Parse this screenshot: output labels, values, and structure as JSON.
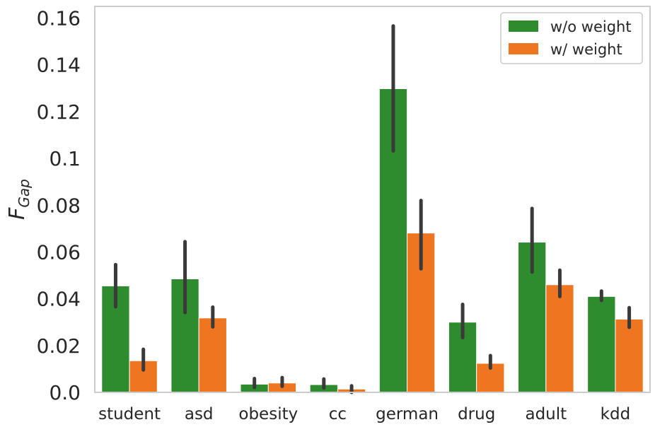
{
  "chart_data": {
    "type": "bar",
    "title": "",
    "xlabel": "",
    "ylabel": "F",
    "ylabel_subscript": "Gap",
    "ylim": [
      0,
      0.165
    ],
    "yticks": [
      0,
      0.02,
      0.04,
      0.06,
      0.08,
      0.1,
      0.12,
      0.14,
      0.16
    ],
    "ytick_labels": [
      "0.0",
      "0.02",
      "0.04",
      "0.06",
      "0.08",
      "0.1",
      "0.12",
      "0.14",
      "0.16"
    ],
    "categories": [
      "student",
      "asd",
      "obesity",
      "cc",
      "german",
      "drug",
      "adult",
      "kdd"
    ],
    "legend_position": "top-right",
    "grid": false,
    "series": [
      {
        "name": "w/o weight",
        "color": "#2e8b2e",
        "values": [
          0.0455,
          0.0485,
          0.0035,
          0.0033,
          0.1298,
          0.03,
          0.0642,
          0.041
        ],
        "err_low": [
          0.0366,
          0.0341,
          0.0021,
          0.0019,
          0.1032,
          0.0234,
          0.0514,
          0.0393
        ],
        "err_high": [
          0.0546,
          0.0644,
          0.0059,
          0.0057,
          0.1566,
          0.0376,
          0.0786,
          0.0433
        ]
      },
      {
        "name": "w/ weight",
        "color": "#ee7621",
        "values": [
          0.0135,
          0.0318,
          0.004,
          0.0014,
          0.0681,
          0.0124,
          0.046,
          0.0313
        ],
        "err_low": [
          0.0096,
          0.028,
          0.0026,
          0.0,
          0.0528,
          0.0104,
          0.041,
          0.0278
        ],
        "err_high": [
          0.0184,
          0.0364,
          0.0063,
          0.0028,
          0.082,
          0.0157,
          0.0522,
          0.0362
        ]
      }
    ]
  }
}
